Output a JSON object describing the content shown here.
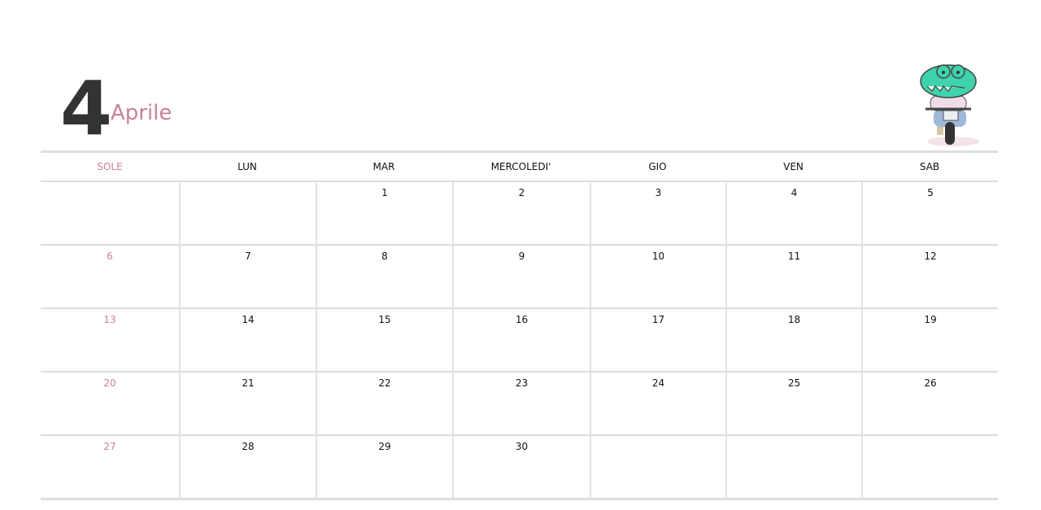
{
  "header": {
    "month_number": "4",
    "month_name": "Aprile"
  },
  "weekdays": [
    "SOLE",
    "LUN",
    "MAR",
    "MERCOLEDI'",
    "GIO",
    "VEN",
    "SAB"
  ],
  "weeks": [
    [
      "",
      "",
      "1",
      "2",
      "3",
      "4",
      "5"
    ],
    [
      "6",
      "7",
      "8",
      "9",
      "10",
      "11",
      "12"
    ],
    [
      "13",
      "14",
      "15",
      "16",
      "17",
      "18",
      "19"
    ],
    [
      "20",
      "21",
      "22",
      "23",
      "24",
      "25",
      "26"
    ],
    [
      "27",
      "28",
      "29",
      "30",
      "",
      "",
      ""
    ]
  ],
  "colors": {
    "sunday": "#c9809c",
    "month_number": "#333333",
    "grid": "#dddddd",
    "mascot": "#3ed3ac"
  },
  "mascot_icon": "crocodile-on-scooter"
}
